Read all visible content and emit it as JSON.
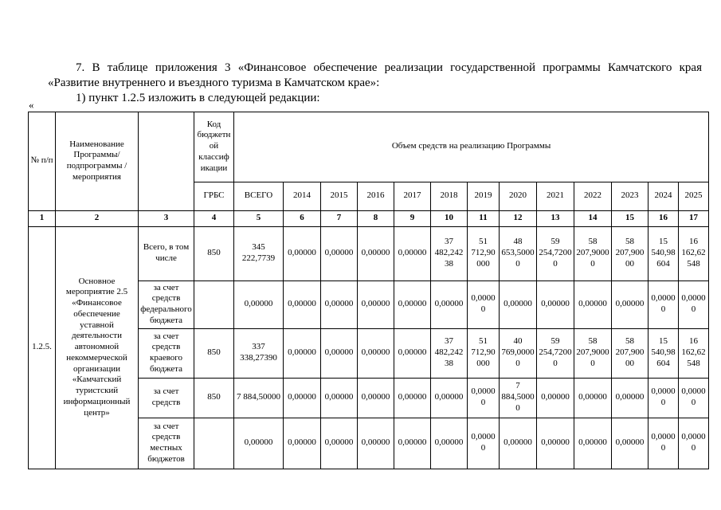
{
  "intro": {
    "p1": "7. В таблице приложения 3 «Финансовое обеспечение реализации государственной программы Камчатского края «Развитие внутреннего и въездного туризма в Камчатском крае»:",
    "p2": "1) пункт 1.2.5 изложить в следующей редакции:",
    "open_quote": "«"
  },
  "table": {
    "header": {
      "num": "№ п/п",
      "name": "Наименование Программы/ подпрограммы / мероприятия",
      "type_col": "",
      "budget_code": "Код бюджетн ой классиф икации",
      "grbs": "ГРБС",
      "volume_title": "Объем средств на реализацию Программы",
      "vsego": "ВСЕГО",
      "years": [
        "2014",
        "2015",
        "2016",
        "2017",
        "2018",
        "2019",
        "2020",
        "2021",
        "2022",
        "2023",
        "2024",
        "2025"
      ]
    },
    "numbering": [
      "1",
      "2",
      "3",
      "4",
      "5",
      "6",
      "7",
      "8",
      "9",
      "10",
      "11",
      "12",
      "13",
      "14",
      "15",
      "16",
      "17"
    ],
    "item": {
      "id": "1.2.5.",
      "title": "Основное мероприятие 2.5 «Финансовое обеспечение уставной деятельности автономной некоммерческой организации «Камчатский туристский информационный центр»"
    },
    "rows": [
      {
        "label": "Всего, в том числе",
        "grbs": "850",
        "vsego": "345 222,7739",
        "values": [
          "0,00000",
          "0,00000",
          "0,00000",
          "0,00000",
          "37 482,24238",
          "51 712,90000",
          "48 653,50000",
          "59 254,72000",
          "58 207,90000",
          "58 207,90000",
          "15 540,98604",
          "16 162,62548"
        ]
      },
      {
        "label": "за счет средств федерального бюджета",
        "grbs": "",
        "vsego": "0,00000",
        "values": [
          "0,00000",
          "0,00000",
          "0,00000",
          "0,00000",
          "0,00000",
          "0,00000",
          "0,00000",
          "0,00000",
          "0,00000",
          "0,00000",
          "0,00000",
          "0,00000"
        ]
      },
      {
        "label": "за счет средств краевого бюджета",
        "grbs": "850",
        "vsego": "337 338,27390",
        "values": [
          "0,00000",
          "0,00000",
          "0,00000",
          "0,00000",
          "37 482,24238",
          "51 712,90000",
          "40 769,00000",
          "59 254,72000",
          "58 207,90000",
          "58 207,90000",
          "15 540,98604",
          "16 162,62548"
        ]
      },
      {
        "label": "за счет средств",
        "grbs": "850",
        "vsego": "7 884,50000",
        "values": [
          "0,00000",
          "0,00000",
          "0,00000",
          "0,00000",
          "0,00000",
          "0,00000",
          "7 884,50000",
          "0,00000",
          "0,00000",
          "0,00000",
          "0,00000",
          "0,00000"
        ]
      },
      {
        "label": "за счет средств местных бюджетов",
        "grbs": "",
        "vsego": "0,00000",
        "values": [
          "0,00000",
          "0,00000",
          "0,00000",
          "0,00000",
          "0,00000",
          "0,00000",
          "0,00000",
          "0,00000",
          "0,00000",
          "0,00000",
          "0,00000",
          "0,00000"
        ]
      }
    ]
  }
}
